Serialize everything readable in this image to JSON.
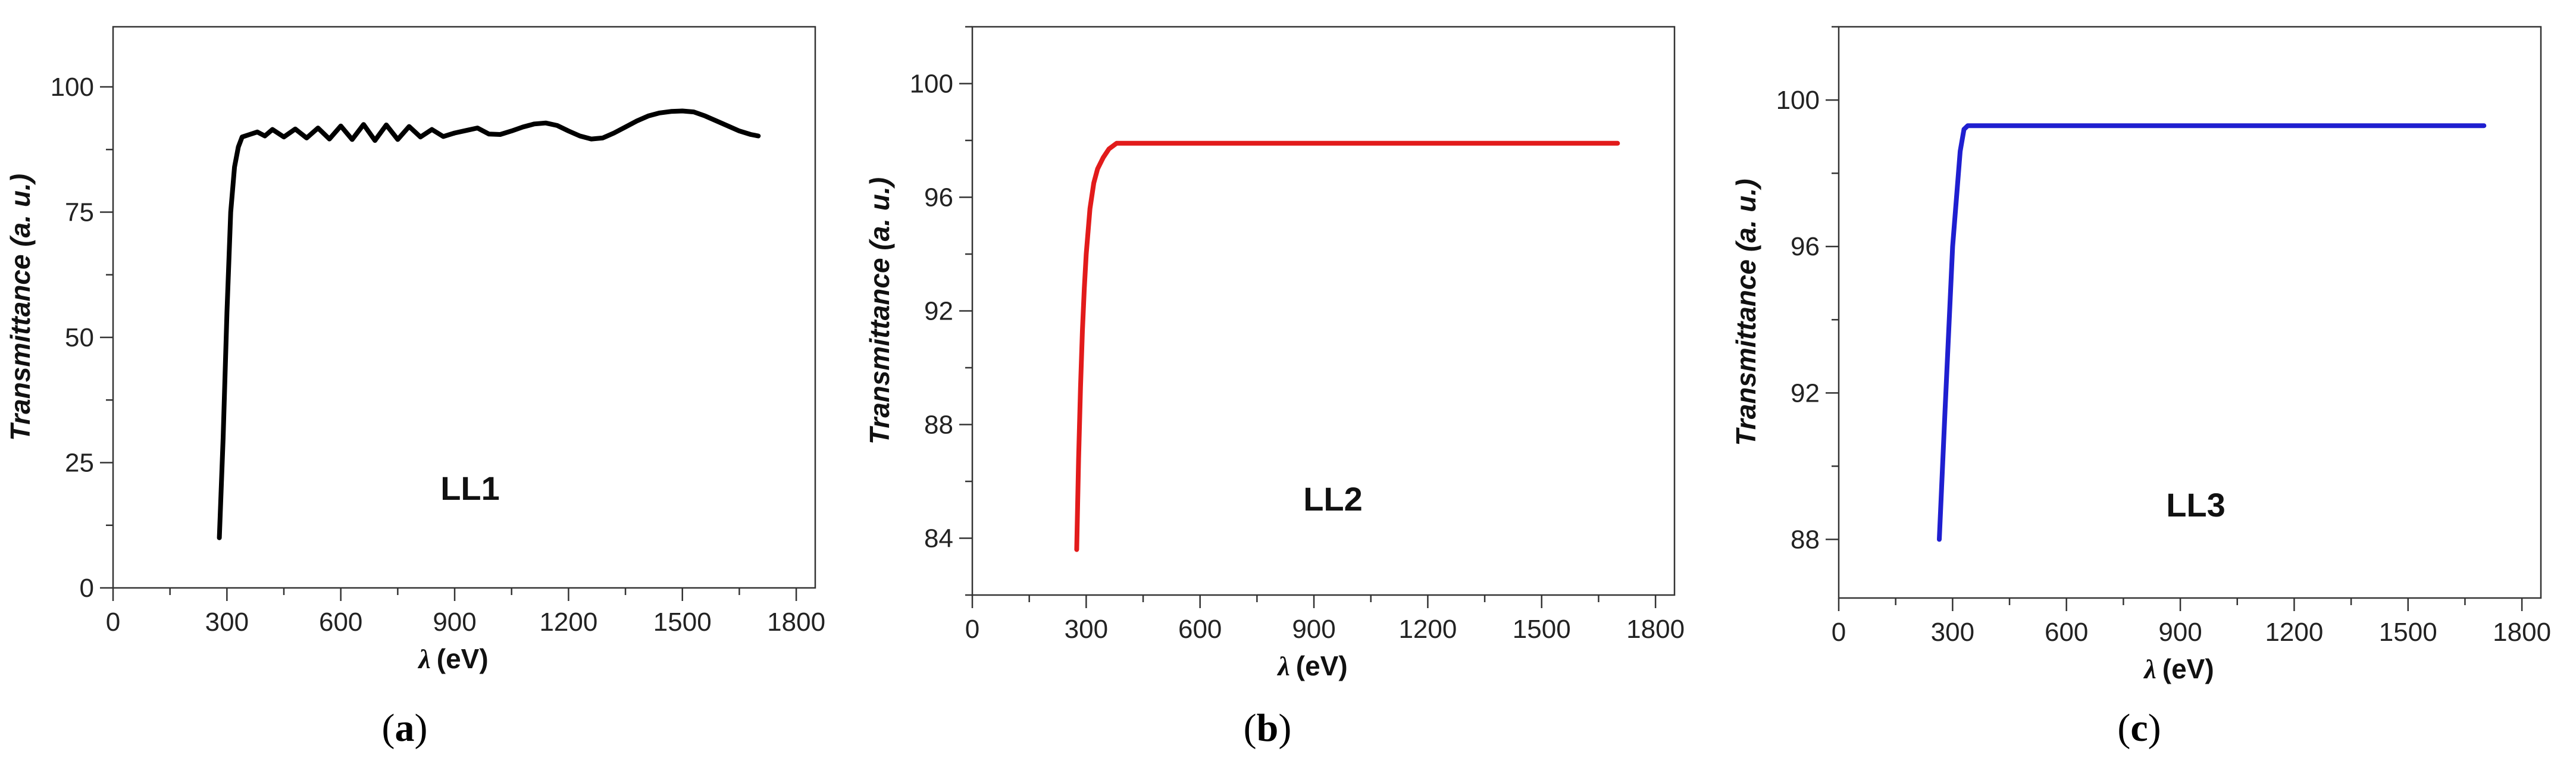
{
  "chart_data": [
    {
      "type": "line",
      "panel": "(a)",
      "panel_letter": "a",
      "sample_label": "LL1",
      "xlabel_symbol": "λ",
      "xlabel_unit": "(eV)",
      "ylabel": "Transmittance (a. u.)",
      "xlim": [
        0,
        1850
      ],
      "ylim": [
        0,
        112
      ],
      "xticks": [
        0,
        300,
        600,
        900,
        1200,
        1500,
        1800
      ],
      "yticks": [
        0,
        25,
        50,
        75,
        100
      ],
      "color": "#000000",
      "series": [
        {
          "x": [
            280,
            290,
            300,
            310,
            320,
            330,
            340,
            360,
            380,
            400,
            420,
            450,
            480,
            510,
            540,
            570,
            600,
            630,
            660,
            690,
            720,
            750,
            780,
            810,
            840,
            870,
            900,
            930,
            960,
            990,
            1020,
            1050,
            1080,
            1110,
            1140,
            1170,
            1200,
            1230,
            1260,
            1290,
            1320,
            1350,
            1380,
            1410,
            1440,
            1470,
            1500,
            1530,
            1560,
            1590,
            1620,
            1650,
            1680,
            1700
          ],
          "y": [
            10,
            30,
            55,
            75,
            84,
            88,
            90,
            90.5,
            91,
            90.2,
            91.5,
            90,
            91.6,
            89.8,
            91.8,
            89.6,
            92.2,
            89.5,
            92.5,
            89.3,
            92.4,
            89.5,
            92.1,
            90,
            91.5,
            90.1,
            90.8,
            91.3,
            91.8,
            90.6,
            90.5,
            91.2,
            92,
            92.6,
            92.8,
            92.3,
            91.2,
            90.2,
            89.6,
            89.8,
            90.8,
            92,
            93.2,
            94.2,
            94.8,
            95.1,
            95.2,
            95,
            94.2,
            93.2,
            92.2,
            91.2,
            90.5,
            90.2
          ]
        }
      ]
    },
    {
      "type": "line",
      "panel": "(b)",
      "panel_letter": "b",
      "sample_label": "LL2",
      "xlabel_symbol": "λ",
      "xlabel_unit": "(eV)",
      "ylabel": "Transmittance (a. u.)",
      "xlim": [
        0,
        1850
      ],
      "ylim": [
        82,
        102
      ],
      "xticks": [
        0,
        300,
        600,
        900,
        1200,
        1500,
        1800
      ],
      "yticks": [
        84,
        88,
        92,
        96,
        100
      ],
      "color": "#e21b1b",
      "series": [
        {
          "x": [
            275,
            280,
            285,
            290,
            295,
            300,
            310,
            320,
            330,
            345,
            360,
            380,
            400,
            500,
            700,
            900,
            1100,
            1300,
            1500,
            1700
          ],
          "y": [
            83.6,
            86.8,
            89.3,
            91.3,
            92.8,
            94,
            95.6,
            96.5,
            97,
            97.4,
            97.7,
            97.9,
            97.9,
            97.9,
            97.9,
            97.9,
            97.9,
            97.9,
            97.9,
            97.9
          ]
        }
      ]
    },
    {
      "type": "line",
      "panel": "(c)",
      "panel_letter": "c",
      "sample_label": "LL3",
      "xlabel_symbol": "λ",
      "xlabel_unit": "(eV)",
      "ylabel": "Transmittance (a. u.)",
      "xlim": [
        0,
        1850
      ],
      "ylim": [
        86.4,
        102
      ],
      "xticks": [
        0,
        300,
        600,
        900,
        1200,
        1500,
        1800
      ],
      "yticks": [
        88,
        92,
        96,
        100
      ],
      "color": "#1f1fd0",
      "series": [
        {
          "x": [
            265,
            280,
            300,
            320,
            330,
            340,
            360,
            400,
            600,
            800,
            1000,
            1200,
            1400,
            1600,
            1700
          ],
          "y": [
            88,
            91.5,
            96,
            98.6,
            99.2,
            99.3,
            99.3,
            99.3,
            99.3,
            99.3,
            99.3,
            99.3,
            99.3,
            99.3,
            99.3
          ]
        }
      ]
    }
  ]
}
